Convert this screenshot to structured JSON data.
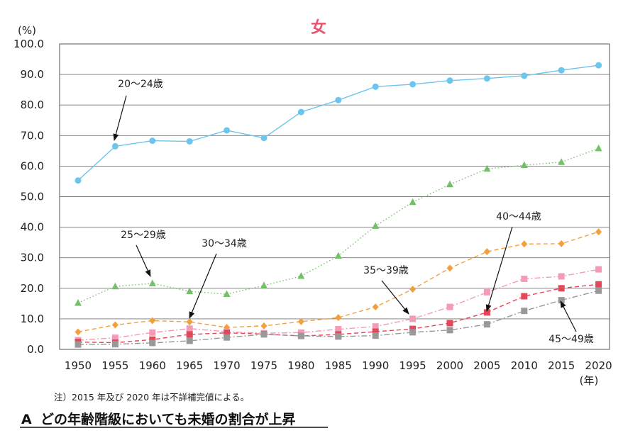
{
  "chart_data": {
    "type": "line",
    "title": "女",
    "ylabel": "(%)",
    "xlabel": "(年)",
    "ylim": [
      0,
      100
    ],
    "yticks": [
      "100.0",
      "90.0",
      "80.0",
      "70.0",
      "60.0",
      "50.0",
      "40.0",
      "30.0",
      "20.0",
      "10.0",
      "0.0"
    ],
    "ytick_values": [
      100,
      90,
      80,
      70,
      60,
      50,
      40,
      30,
      20,
      10,
      0
    ],
    "x": [
      "1950",
      "1955",
      "1960",
      "1965",
      "1970",
      "1975",
      "1980",
      "1985",
      "1990",
      "1995",
      "2000",
      "2005",
      "2010",
      "2015",
      "2020"
    ],
    "grid": "horizontal",
    "legend": "annotations",
    "series": [
      {
        "name": "20〜24歳",
        "color": "#6cc5ec",
        "marker": "circle",
        "dash": "solid",
        "values": [
          55.3,
          66.5,
          68.3,
          68.1,
          71.7,
          69.2,
          77.7,
          81.6,
          86.0,
          86.8,
          88.0,
          88.7,
          89.6,
          91.4,
          93.0
        ]
      },
      {
        "name": "25〜29歳",
        "color": "#76bf6a",
        "marker": "triangle",
        "dash": "dotted",
        "values": [
          15.2,
          20.6,
          21.6,
          19.0,
          18.1,
          20.9,
          24.0,
          30.6,
          40.4,
          48.2,
          54.0,
          59.1,
          60.3,
          61.3,
          65.8
        ]
      },
      {
        "name": "30〜34歳",
        "color": "#f2a03f",
        "marker": "diamond",
        "dash": "dashed",
        "values": [
          5.7,
          8.0,
          9.4,
          9.0,
          7.2,
          7.7,
          9.1,
          10.4,
          13.9,
          19.7,
          26.6,
          32.0,
          34.5,
          34.6,
          38.5
        ]
      },
      {
        "name": "35〜39歳",
        "color": "#f49bb6",
        "marker": "square",
        "dash": "dashdot",
        "values": [
          3.0,
          3.8,
          5.5,
          6.8,
          5.8,
          5.3,
          5.5,
          6.6,
          7.5,
          10.0,
          13.9,
          18.7,
          23.1,
          23.9,
          26.2
        ]
      },
      {
        "name": "40〜44歳",
        "color": "#e2475a",
        "marker": "square",
        "dash": "dashed",
        "values": [
          2.4,
          2.2,
          3.2,
          4.9,
          5.4,
          5.0,
          4.4,
          4.9,
          5.8,
          6.7,
          8.6,
          12.1,
          17.4,
          20.0,
          21.3
        ]
      },
      {
        "name": "45〜49歳",
        "color": "#999999",
        "marker": "square",
        "dash": "dashdot",
        "values": [
          1.6,
          1.7,
          2.1,
          2.8,
          3.9,
          4.9,
          4.4,
          4.2,
          4.5,
          5.6,
          6.3,
          8.2,
          12.6,
          16.1,
          19.2
        ]
      }
    ],
    "annotations": [
      "20〜24歳",
      "25〜29歳",
      "30〜34歳",
      "35〜39歳",
      "40〜44歳",
      "45〜49歳"
    ]
  },
  "note": "注）2015 年及び 2020 年は不詳補完値による。",
  "heading": {
    "marker": "A",
    "text": "どの年齢階級においても未婚の割合が上昇"
  }
}
